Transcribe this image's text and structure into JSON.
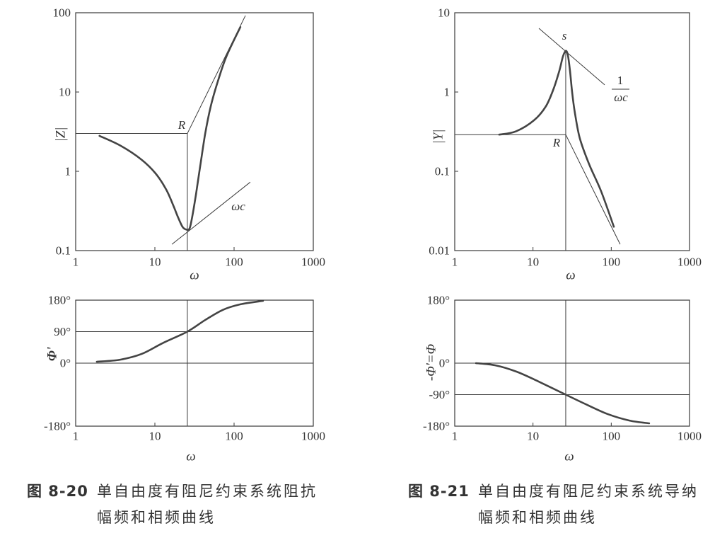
{
  "captions": [
    {
      "number": "图 8-20",
      "line1": "单自由度有阻尼约束系统阻抗",
      "line2": "幅频和相频曲线"
    },
    {
      "number": "图 8-21",
      "line1": "单自由度有阻尼约束系统导纳",
      "line2": "幅频和相频曲线"
    }
  ],
  "chart_data": [
    {
      "type": "line",
      "xscale": "log",
      "yscale": "log",
      "xlabel": "ω",
      "ylabel": "|Z|",
      "xlim": [
        1,
        1000
      ],
      "ylim": [
        0.1,
        100
      ],
      "grid": false,
      "xticks": [
        {
          "value": 1,
          "label": "1"
        },
        {
          "value": 10,
          "label": "10"
        },
        {
          "value": 100,
          "label": "100"
        },
        {
          "value": 1000,
          "label": "1000"
        }
      ],
      "yticks": [
        {
          "value": 0.1,
          "label": "0.1"
        },
        {
          "value": 1,
          "label": "1"
        },
        {
          "value": 10,
          "label": "10"
        },
        {
          "value": 100,
          "label": "100"
        }
      ],
      "series": [
        {
          "x": [
            2.0,
            3.7,
            6.8,
            10.2,
            13.9,
            17.1,
            19.7,
            22.3,
            24.7,
            27.4,
            29.7,
            33.0,
            37.3,
            43.0,
            50.7,
            62.3,
            79.8,
            120
          ],
          "y": [
            2.8,
            2.1,
            1.4,
            0.94,
            0.59,
            0.37,
            0.26,
            0.2,
            0.185,
            0.19,
            0.27,
            0.51,
            1.15,
            2.9,
            6.6,
            13.6,
            27.9,
            66
          ]
        }
      ],
      "reference_lines": [
        {
          "x": [
            1,
            25.7
          ],
          "y": [
            3.0,
            3.0
          ]
        },
        {
          "x": [
            25.7,
            25.7
          ],
          "y": [
            3.0,
            0.1
          ]
        },
        {
          "x": [
            25.7,
            139
          ],
          "y": [
            3.0,
            92
          ]
        },
        {
          "x": [
            16.4,
            160
          ],
          "y": [
            0.12,
            0.73
          ]
        }
      ],
      "annotations": {
        "R": "R",
        "omega_c": "ωc"
      }
    },
    {
      "type": "line",
      "xscale": "log",
      "yscale": "log",
      "xlabel": "ω",
      "ylabel": "|Y|",
      "xlim": [
        1,
        1000
      ],
      "ylim": [
        0.01,
        10
      ],
      "grid": false,
      "xticks": [
        {
          "value": 1,
          "label": "1"
        },
        {
          "value": 10,
          "label": "10"
        },
        {
          "value": 100,
          "label": "100"
        },
        {
          "value": 1000,
          "label": "1000"
        }
      ],
      "yticks": [
        {
          "value": 0.01,
          "label": "0.01"
        },
        {
          "value": 0.1,
          "label": "0.1"
        },
        {
          "value": 1,
          "label": "1"
        },
        {
          "value": 10,
          "label": "10"
        }
      ],
      "series": [
        {
          "x": [
            3.7,
            6.1,
            10.3,
            14.6,
            18.4,
            21.7,
            24.1,
            26.2,
            27.9,
            29.7,
            31.6,
            34.4,
            39.7,
            52.1,
            74.2,
            108
          ],
          "y": [
            0.29,
            0.32,
            0.44,
            0.66,
            1.11,
            1.85,
            2.79,
            3.3,
            2.91,
            1.85,
            1.0,
            0.54,
            0.26,
            0.123,
            0.056,
            0.02
          ]
        }
      ],
      "reference_lines": [
        {
          "x": [
            1,
            26.2
          ],
          "y": [
            0.29,
            0.29
          ]
        },
        {
          "x": [
            26.2,
            26.2
          ],
          "y": [
            3.3,
            0.01
          ]
        },
        {
          "x": [
            26.2,
            130
          ],
          "y": [
            0.29,
            0.012
          ]
        },
        {
          "x": [
            11.9,
            82.4
          ],
          "y": [
            6.36,
            1.23
          ]
        }
      ],
      "annotations": {
        "s": "s",
        "R": "R",
        "numerator": "1",
        "denominator": "ωc"
      }
    },
    {
      "type": "line",
      "xscale": "log",
      "yscale": "linear",
      "xlabel": "ω",
      "ylabel": "Φ'",
      "xlim": [
        1,
        1000
      ],
      "ylim": [
        -180,
        180
      ],
      "grid": false,
      "xticks": [
        {
          "value": 1,
          "label": "1"
        },
        {
          "value": 10,
          "label": "10"
        },
        {
          "value": 100,
          "label": "100"
        },
        {
          "value": 1000,
          "label": "1000"
        }
      ],
      "yticks": [
        {
          "value": 180,
          "label": "180°"
        },
        {
          "value": 90,
          "label": "90°"
        },
        {
          "value": 0,
          "label": "0°"
        },
        {
          "value": -180,
          "label": "-180°"
        }
      ],
      "series": [
        {
          "x": [
            1.85,
            3.65,
            6.77,
            12.5,
            25.7,
            43.0,
            72.0,
            120,
            232
          ],
          "y": [
            4,
            10,
            26,
            57,
            90,
            123,
            152,
            168,
            178
          ]
        }
      ],
      "reference_lines": [
        {
          "x": [
            1,
            1000
          ],
          "y": [
            90,
            90
          ]
        },
        {
          "x": [
            1,
            1000
          ],
          "y": [
            0,
            0
          ]
        },
        {
          "x": [
            25.7,
            25.7
          ],
          "y": [
            -180,
            180
          ]
        }
      ]
    },
    {
      "type": "line",
      "xscale": "log",
      "yscale": "linear",
      "xlabel": "ω",
      "ylabel": "-Φ'=Φ",
      "xlim": [
        1,
        1000
      ],
      "ylim": [
        -180,
        180
      ],
      "grid": false,
      "xticks": [
        {
          "value": 1,
          "label": "1"
        },
        {
          "value": 10,
          "label": "10"
        },
        {
          "value": 100,
          "label": "100"
        },
        {
          "value": 1000,
          "label": "1000"
        }
      ],
      "yticks": [
        {
          "value": 180,
          "label": "180°"
        },
        {
          "value": 0,
          "label": "0°"
        },
        {
          "value": -90,
          "label": "-90°"
        },
        {
          "value": -180,
          "label": "-180°"
        }
      ],
      "series": [
        {
          "x": [
            1.87,
            3.27,
            6.11,
            11.4,
            26.2,
            49.0,
            91.4,
            171,
            305
          ],
          "y": [
            0,
            -6,
            -24,
            -51,
            -90,
            -119,
            -146,
            -164,
            -172
          ]
        }
      ],
      "reference_lines": [
        {
          "x": [
            1,
            1000
          ],
          "y": [
            0,
            0
          ]
        },
        {
          "x": [
            1,
            1000
          ],
          "y": [
            -90,
            -90
          ]
        },
        {
          "x": [
            26.2,
            26.2
          ],
          "y": [
            -180,
            180
          ]
        }
      ]
    }
  ]
}
